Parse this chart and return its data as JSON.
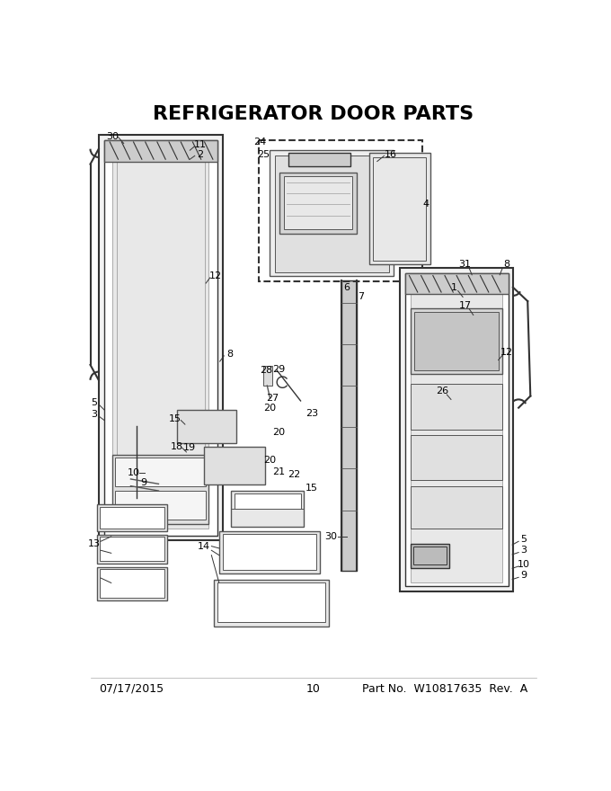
{
  "title": "REFRIGERATOR DOOR PARTS",
  "title_fontsize": 16,
  "title_fontweight": "bold",
  "background_color": "#ffffff",
  "footer_left": "07/17/2015",
  "footer_center": "10",
  "footer_right": "Part No.  W10817635  Rev.  A",
  "footer_fontsize": 9,
  "figsize": [
    6.8,
    8.8
  ],
  "dpi": 100
}
